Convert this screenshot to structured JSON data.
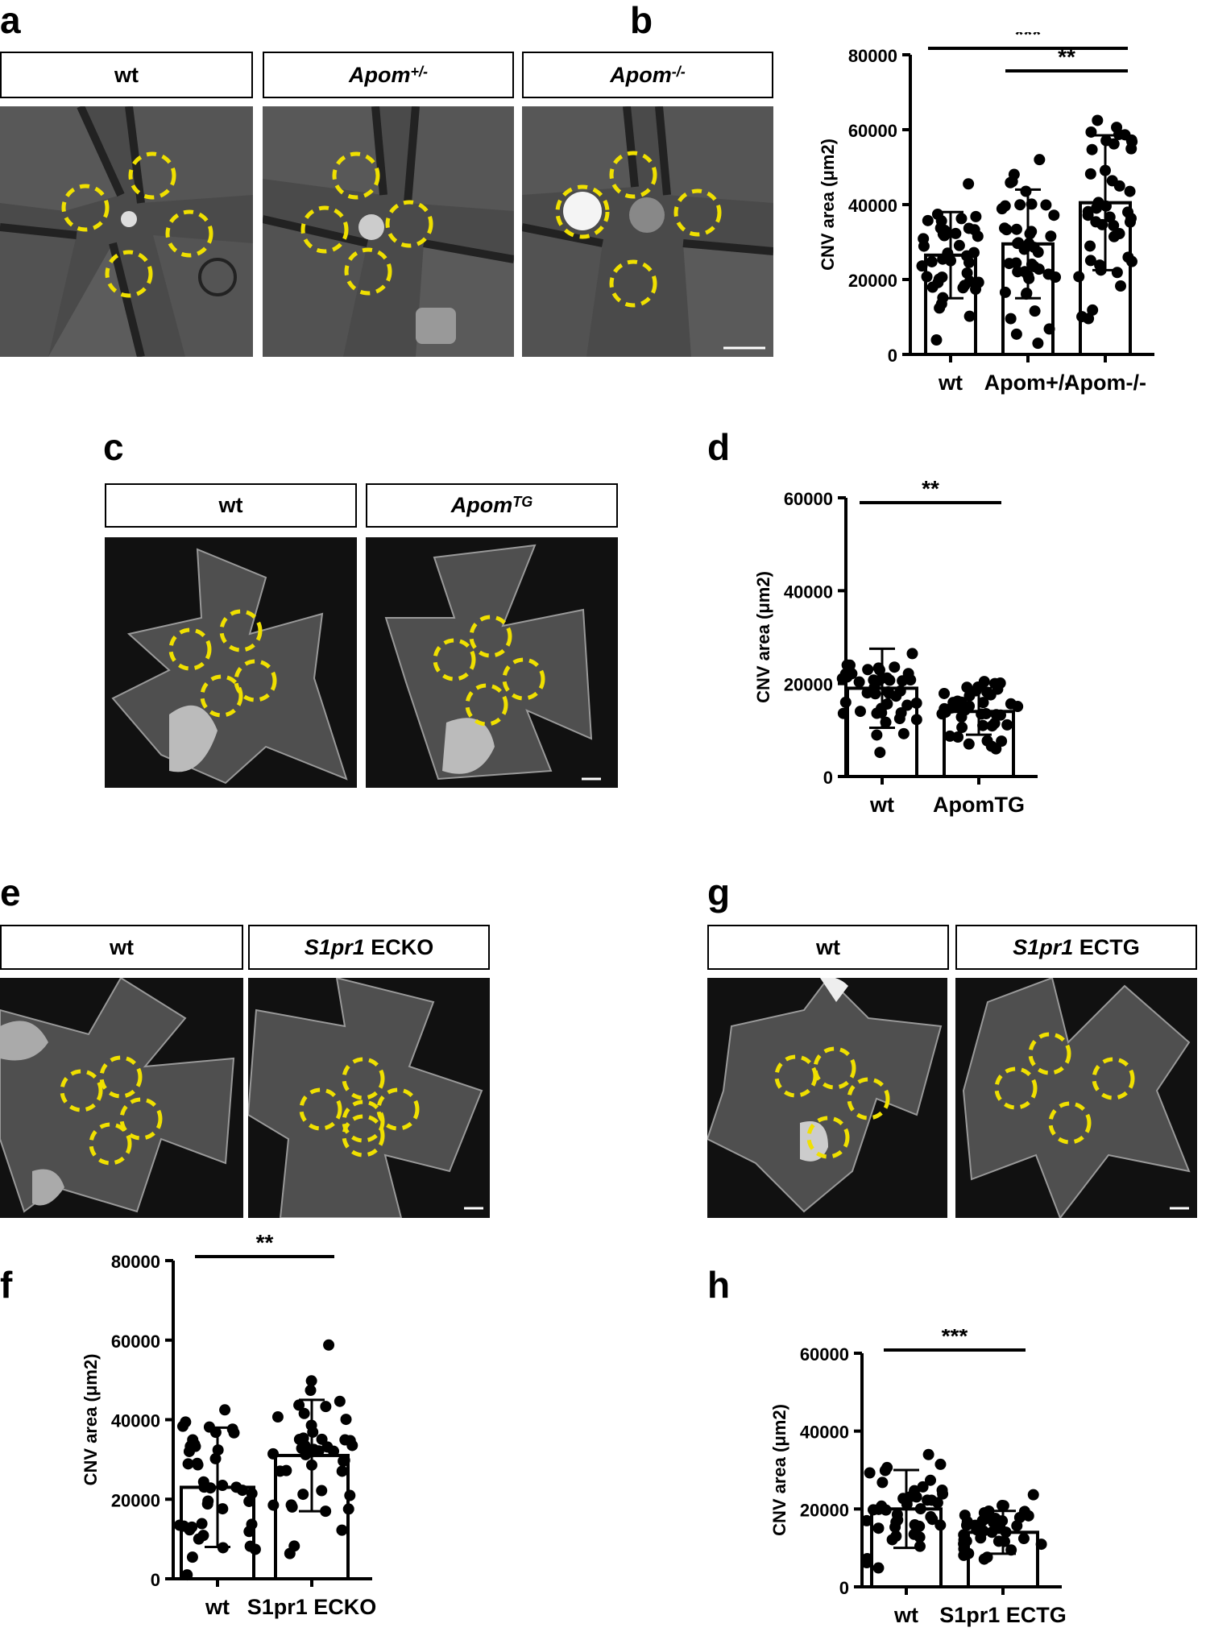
{
  "panel_labels": {
    "a": "a",
    "b": "b",
    "c": "c",
    "d": "d",
    "e": "e",
    "f": "f",
    "g": "g",
    "h": "h"
  },
  "headers": {
    "a1": "wt",
    "a2_base": "Apom",
    "a2_sup": "+/-",
    "a3_base": "Apom",
    "a3_sup": "-/-",
    "c1": "wt",
    "c2_base": "Apom",
    "c2_sup": "TG",
    "e1": "wt",
    "e2_gene": "S1pr1",
    "e2_suffix": " ECKO",
    "g1": "wt",
    "g2_gene": "S1pr1",
    "g2_suffix": " ECTG"
  },
  "colors": {
    "circle": "#f0e000",
    "bar_fill": "#ffffff",
    "dot": "#000000",
    "tissue": "#5a5a5a",
    "background": "#111111"
  },
  "chart_data": [
    {
      "id": "b",
      "type": "bar",
      "ylabel": "CNV area (μm2)",
      "ylim": [
        0,
        80000
      ],
      "yticks": [
        0,
        20000,
        40000,
        60000,
        80000
      ],
      "categories": [
        "wt",
        "Apom+/-",
        "Apom-/-"
      ],
      "values": [
        26500,
        29500,
        40500
      ],
      "sd": [
        11500,
        14500,
        18000
      ],
      "significance": [
        {
          "from": 0,
          "to": 2,
          "label": "***"
        },
        {
          "from": 1,
          "to": 2,
          "label": "**"
        }
      ]
    },
    {
      "id": "d",
      "type": "bar",
      "ylabel": "CNV area (μm2)",
      "ylim": [
        0,
        60000
      ],
      "yticks": [
        0,
        20000,
        40000,
        60000
      ],
      "categories": [
        "wt",
        "ApomTG"
      ],
      "values": [
        19000,
        14000
      ],
      "sd": [
        8500,
        5000
      ],
      "significance": [
        {
          "from": 0,
          "to": 1,
          "label": "**"
        }
      ]
    },
    {
      "id": "f",
      "type": "bar",
      "ylabel": "CNV area (μm2)",
      "ylim": [
        0,
        80000
      ],
      "yticks": [
        0,
        20000,
        40000,
        60000,
        80000
      ],
      "categories": [
        "wt",
        "S1pr1 ECKO"
      ],
      "values": [
        23000,
        31000
      ],
      "sd": [
        15000,
        14000
      ],
      "significance": [
        {
          "from": 0,
          "to": 1,
          "label": "**"
        }
      ]
    },
    {
      "id": "h",
      "type": "bar",
      "ylabel": "CNV area (μm2)",
      "ylim": [
        0,
        60000
      ],
      "yticks": [
        0,
        20000,
        40000,
        60000
      ],
      "categories": [
        "wt",
        "S1pr1 ECTG"
      ],
      "values": [
        20000,
        14000
      ],
      "sd": [
        10000,
        5500
      ],
      "significance": [
        {
          "from": 0,
          "to": 1,
          "label": "***"
        }
      ]
    }
  ]
}
